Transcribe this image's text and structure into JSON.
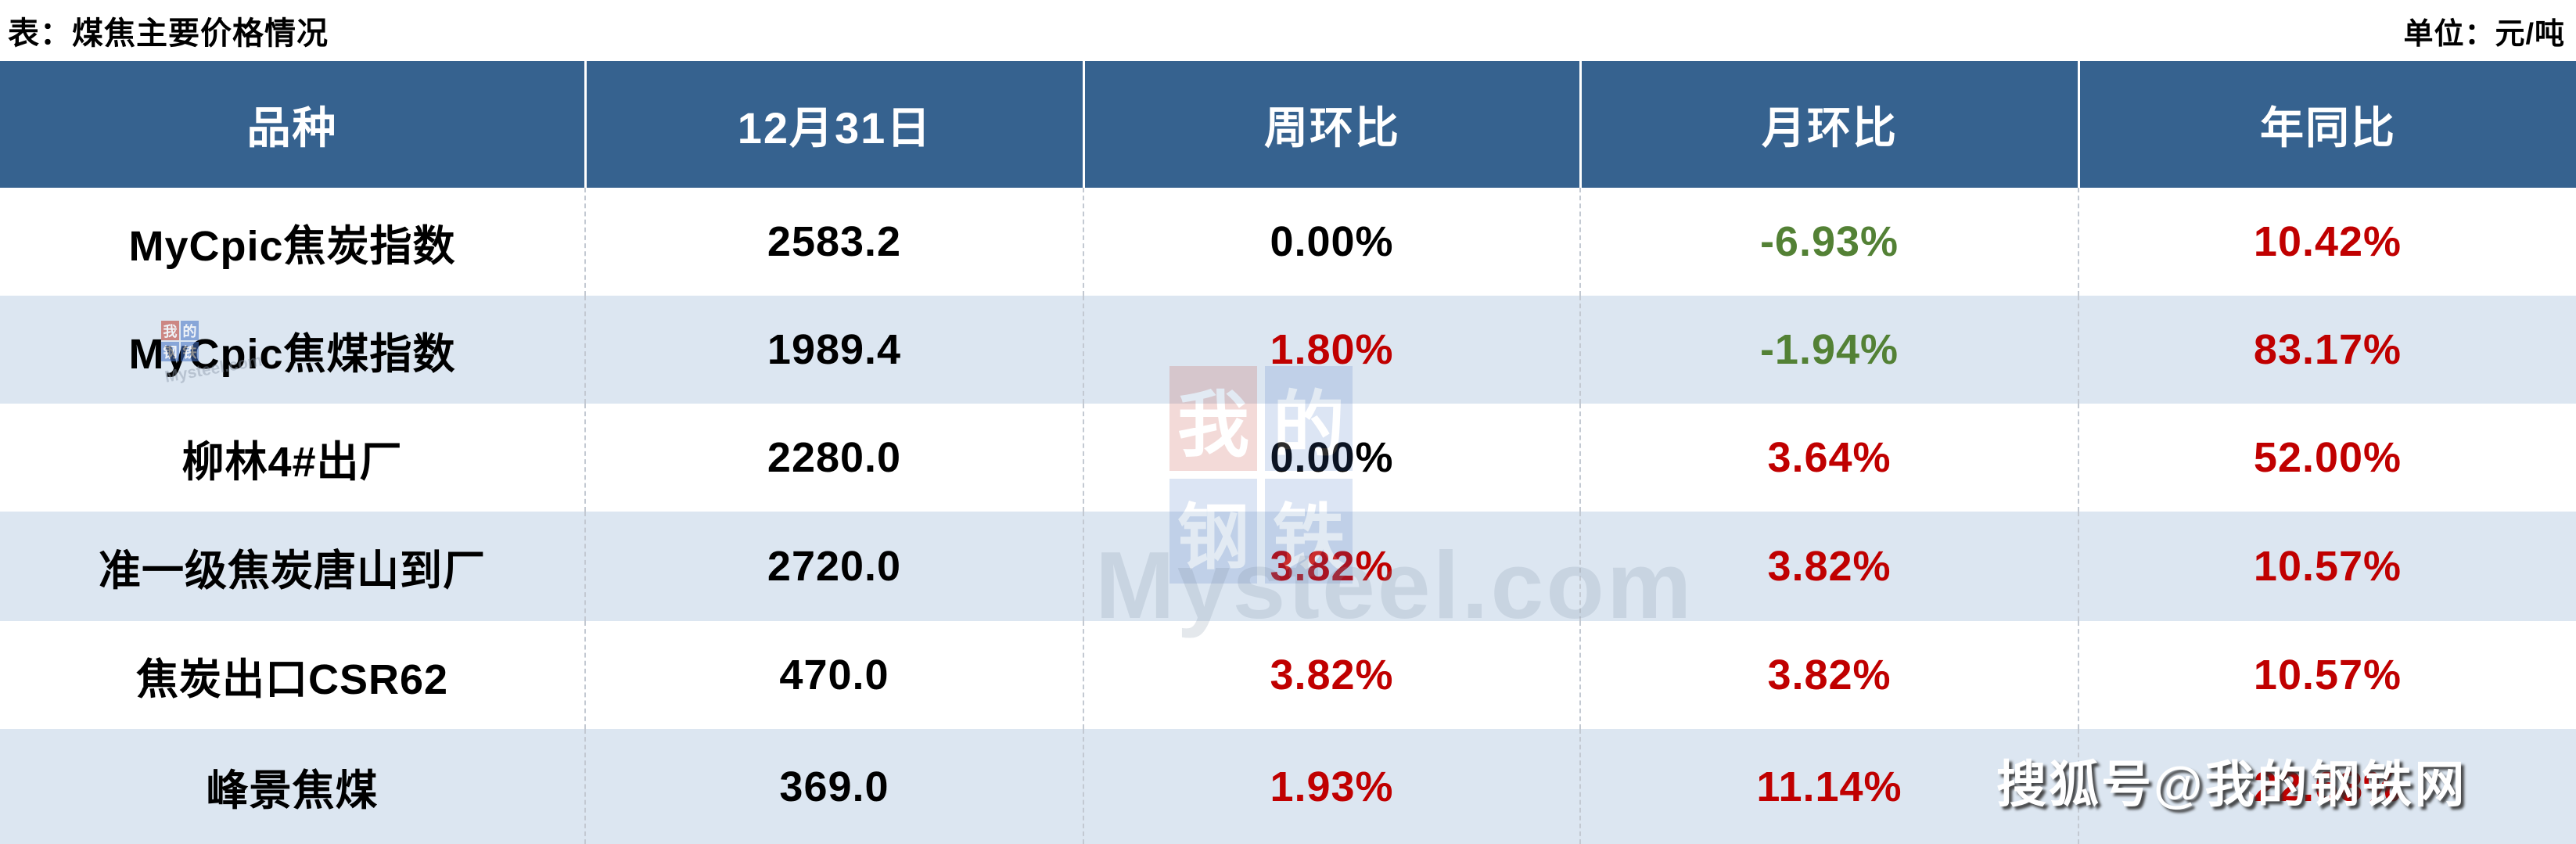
{
  "page_title": "表：煤焦主要价格情况",
  "unit_label": "单位：元/吨",
  "chart_data": {
    "type": "table",
    "title": "表：煤焦主要价格情况",
    "unit": "元/吨",
    "columns": [
      "品种",
      "12月31日",
      "周环比",
      "月环比",
      "年同比"
    ],
    "rows": [
      [
        "MyCpic焦炭指数",
        "2583.2",
        "0.00%",
        "-6.93%",
        "10.42%"
      ],
      [
        "MyCpic焦煤指数",
        "1989.4",
        "1.80%",
        "-1.94%",
        "83.17%"
      ],
      [
        "柳林4#出厂",
        "2280.0",
        "0.00%",
        "3.64%",
        "52.00%"
      ],
      [
        "准一级焦炭唐山到厂",
        "2720.0",
        "3.82%",
        "3.82%",
        "10.57%"
      ],
      [
        "焦炭出口CSR62",
        "470.0",
        "3.82%",
        "3.82%",
        "10.57%"
      ],
      [
        "峰景焦煤",
        "369.0",
        "1.93%",
        "11.14%",
        "22.68%"
      ]
    ]
  },
  "table": {
    "columns": [
      "品种",
      "12月31日",
      "周环比",
      "月环比",
      "年同比"
    ],
    "rows": [
      {
        "name": "MyCpic焦炭指数",
        "price": "2583.2",
        "wow": {
          "text": "0.00%",
          "color": "black"
        },
        "mom": {
          "text": "-6.93%",
          "color": "green"
        },
        "yoy": {
          "text": "10.42%",
          "color": "red"
        }
      },
      {
        "name": "MyCpic焦煤指数",
        "price": "1989.4",
        "wow": {
          "text": "1.80%",
          "color": "red"
        },
        "mom": {
          "text": "-1.94%",
          "color": "green"
        },
        "yoy": {
          "text": "83.17%",
          "color": "red"
        }
      },
      {
        "name": "柳林4#出厂",
        "price": "2280.0",
        "wow": {
          "text": "0.00%",
          "color": "black"
        },
        "mom": {
          "text": "3.64%",
          "color": "red"
        },
        "yoy": {
          "text": "52.00%",
          "color": "red"
        }
      },
      {
        "name": "准一级焦炭唐山到厂",
        "price": "2720.0",
        "wow": {
          "text": "3.82%",
          "color": "red"
        },
        "mom": {
          "text": "3.82%",
          "color": "red"
        },
        "yoy": {
          "text": "10.57%",
          "color": "red"
        }
      },
      {
        "name": "焦炭出口CSR62",
        "price": "470.0",
        "wow": {
          "text": "3.82%",
          "color": "red"
        },
        "mom": {
          "text": "3.82%",
          "color": "red"
        },
        "yoy": {
          "text": "10.57%",
          "color": "red"
        }
      },
      {
        "name": "峰景焦煤",
        "price": "369.0",
        "wow": {
          "text": "1.93%",
          "color": "red"
        },
        "mom": {
          "text": "11.14%",
          "color": "red"
        },
        "yoy": {
          "text": "22.68%",
          "color": "red",
          "obscured_by_watermark": true
        }
      }
    ]
  },
  "colors": {
    "black": "#000000",
    "red": "#C00000",
    "green": "#538135",
    "header_bg": "#36628F",
    "row_alt_bg": "#DCE6F1"
  },
  "watermarks": {
    "center_logo_chars": [
      "我",
      "的",
      "钢",
      "铁"
    ],
    "center_text": "Mysteel.com",
    "mini_logo_chars": [
      "我",
      "的",
      "钢",
      "铁"
    ],
    "mini_text": "Mysteel.com",
    "sohu_text": "搜狐号@我的钢铁网"
  }
}
